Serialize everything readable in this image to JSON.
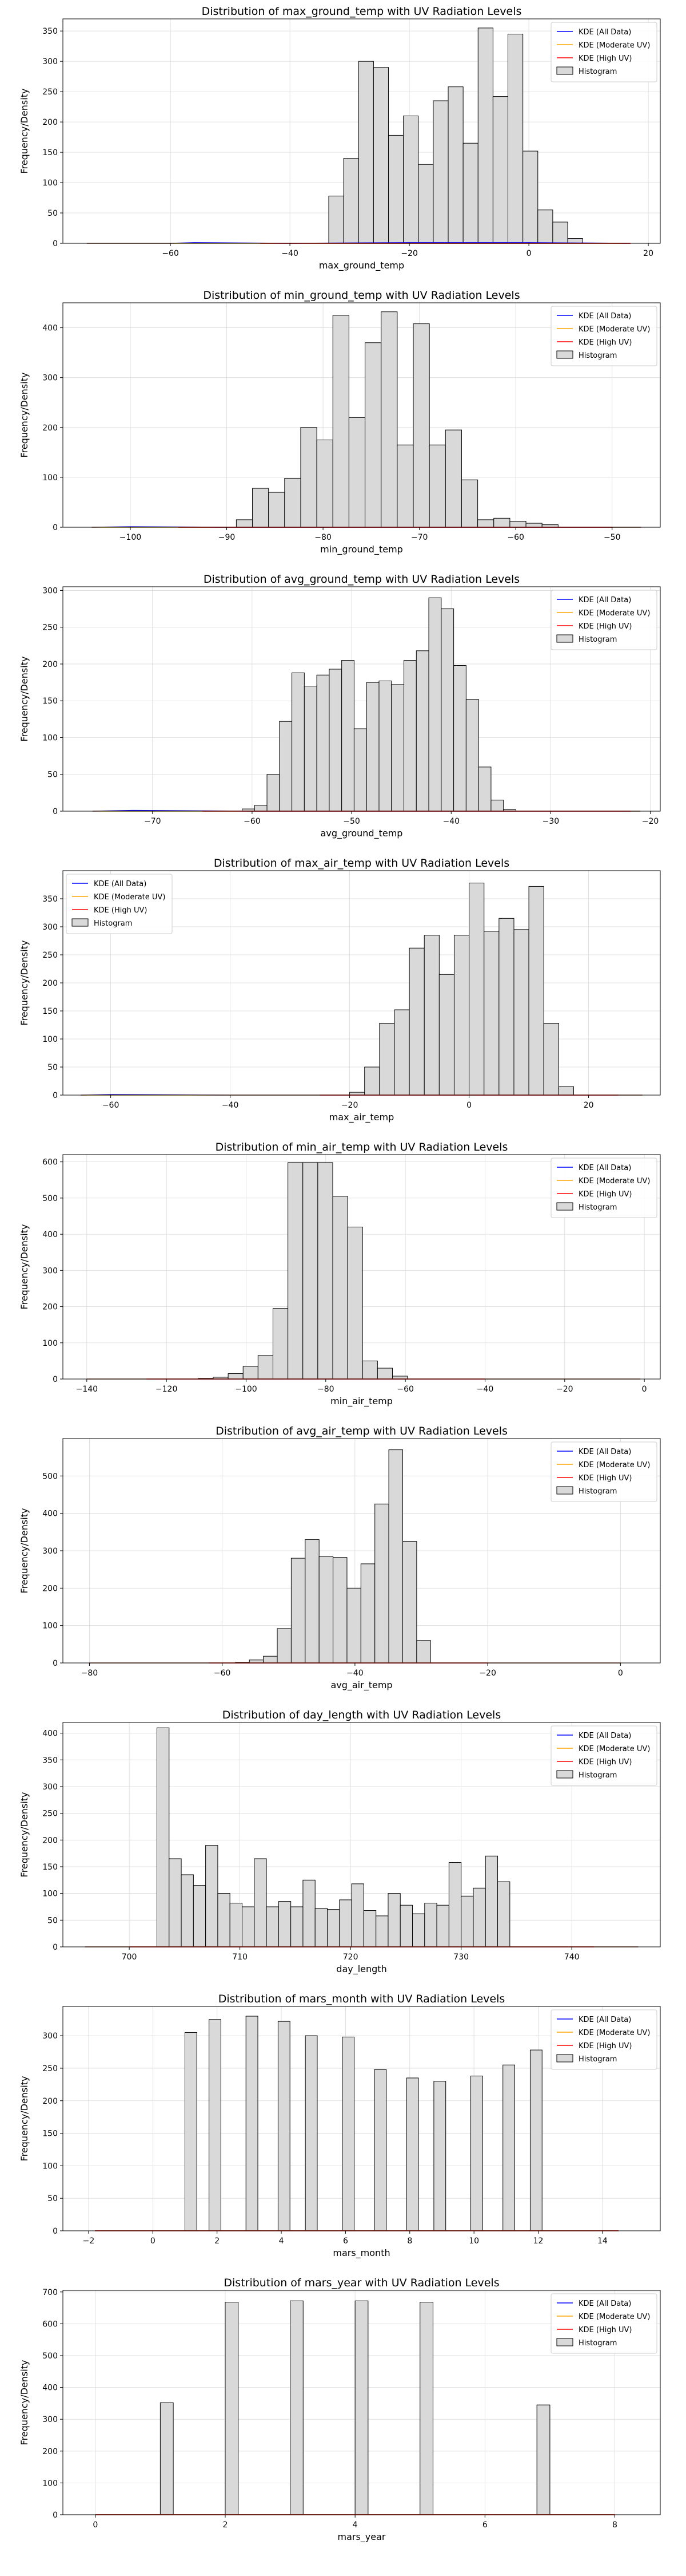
{
  "legend_labels": [
    "KDE (All Data)",
    "KDE (Moderate UV)",
    "KDE (High UV)",
    "Histogram"
  ],
  "colors": {
    "kde_all": "#0000ff",
    "kde_moderate": "#ffa500",
    "kde_high": "#ff0000",
    "hist_fill": "#d9d9d9",
    "hist_edge": "#000000",
    "grid": "#d9d9d9"
  },
  "chart_data": [
    {
      "type": "bar",
      "title": "Distribution of max_ground_temp with UV Radiation Levels",
      "xlabel": "max_ground_temp",
      "ylabel": "Frequency/Density",
      "xlim": [
        -78,
        22
      ],
      "ylim": [
        0,
        370
      ],
      "xticks": [
        -60,
        -40,
        -20,
        0,
        20
      ],
      "yticks": [
        0,
        50,
        100,
        150,
        200,
        250,
        300,
        350
      ],
      "legend_position": "upper right",
      "grid": true,
      "bin_start": -33.5,
      "bin_width": 2.5,
      "counts": [
        78,
        140,
        300,
        290,
        178,
        210,
        130,
        235,
        258,
        165,
        355,
        242,
        345,
        152,
        55,
        35,
        8
      ],
      "series": [
        {
          "name": "KDE (All Data)",
          "x": [
            -74,
            -60,
            -56,
            -40,
            -20,
            0,
            17
          ],
          "y": [
            0,
            0,
            1,
            0,
            1,
            1,
            0
          ]
        },
        {
          "name": "KDE (Moderate UV)",
          "x": [
            -74,
            -60,
            -40,
            -20,
            0,
            17
          ],
          "y": [
            0,
            0,
            0,
            0,
            0,
            0
          ]
        },
        {
          "name": "KDE (High UV)",
          "x": [
            -45,
            -30,
            -20,
            -10,
            0,
            10,
            17
          ],
          "y": [
            0,
            0,
            0,
            0,
            0,
            0,
            0
          ]
        }
      ]
    },
    {
      "type": "bar",
      "title": "Distribution of min_ground_temp with UV Radiation Levels",
      "xlabel": "min_ground_temp",
      "ylabel": "Frequency/Density",
      "xlim": [
        -107,
        -45
      ],
      "ylim": [
        0,
        450
      ],
      "xticks": [
        -100,
        -90,
        -80,
        -70,
        -60,
        -50
      ],
      "yticks": [
        0,
        100,
        200,
        300,
        400
      ],
      "legend_position": "upper right",
      "grid": true,
      "bin_start": -89,
      "bin_width": 1.67,
      "counts": [
        15,
        78,
        70,
        98,
        200,
        175,
        425,
        220,
        370,
        432,
        165,
        408,
        165,
        195,
        95,
        15,
        18,
        12,
        8,
        5
      ],
      "series": [
        {
          "name": "KDE (All Data)",
          "x": [
            -104,
            -100,
            -90,
            -80,
            -70,
            -60,
            -47
          ],
          "y": [
            0,
            1,
            0,
            0,
            0,
            0,
            0
          ]
        },
        {
          "name": "KDE (Moderate UV)",
          "x": [
            -104,
            -90,
            -80,
            -70,
            -60,
            -47
          ],
          "y": [
            0,
            0,
            0,
            0,
            0,
            0
          ]
        },
        {
          "name": "KDE (High UV)",
          "x": [
            -95,
            -90,
            -80,
            -70,
            -60,
            -50
          ],
          "y": [
            0,
            0,
            0,
            0,
            0,
            0
          ]
        }
      ]
    },
    {
      "type": "bar",
      "title": "Distribution of avg_ground_temp with UV Radiation Levels",
      "xlabel": "avg_ground_temp",
      "ylabel": "Frequency/Density",
      "xlim": [
        -79,
        -19
      ],
      "ylim": [
        0,
        305
      ],
      "xticks": [
        -70,
        -60,
        -50,
        -40,
        -30,
        -20
      ],
      "yticks": [
        0,
        50,
        100,
        150,
        200,
        250,
        300
      ],
      "legend_position": "upper right",
      "grid": true,
      "bin_start": -61,
      "bin_width": 1.25,
      "counts": [
        3,
        8,
        50,
        122,
        188,
        170,
        185,
        193,
        205,
        112,
        175,
        177,
        172,
        205,
        218,
        290,
        275,
        198,
        152,
        60,
        15,
        2
      ],
      "series": [
        {
          "name": "KDE (All Data)",
          "x": [
            -76,
            -72,
            -60,
            -50,
            -40,
            -30,
            -21
          ],
          "y": [
            0,
            1,
            0,
            0,
            0,
            0,
            0
          ]
        },
        {
          "name": "KDE (Moderate UV)",
          "x": [
            -76,
            -60,
            -50,
            -40,
            -30,
            -21
          ],
          "y": [
            0,
            0,
            0,
            0,
            0,
            0
          ]
        },
        {
          "name": "KDE (High UV)",
          "x": [
            -65,
            -60,
            -50,
            -40,
            -30,
            -22
          ],
          "y": [
            0,
            0,
            0,
            0,
            0,
            0
          ]
        }
      ]
    },
    {
      "type": "bar",
      "title": "Distribution of max_air_temp with UV Radiation Levels",
      "xlabel": "max_air_temp",
      "ylabel": "Frequency/Density",
      "xlim": [
        -68,
        32
      ],
      "ylim": [
        0,
        400
      ],
      "xticks": [
        -60,
        -40,
        -20,
        0,
        20
      ],
      "yticks": [
        0,
        50,
        100,
        150,
        200,
        250,
        300,
        350
      ],
      "legend_position": "upper left",
      "grid": true,
      "bin_start": -20,
      "bin_width": 2.5,
      "counts": [
        5,
        50,
        128,
        152,
        262,
        285,
        215,
        285,
        378,
        292,
        315,
        295,
        372,
        128,
        15
      ],
      "series": [
        {
          "name": "KDE (All Data)",
          "x": [
            -65,
            -60,
            -40,
            -20,
            0,
            20,
            29
          ],
          "y": [
            0,
            1,
            0,
            0,
            0,
            0,
            0
          ]
        },
        {
          "name": "KDE (Moderate UV)",
          "x": [
            -65,
            -40,
            -20,
            0,
            20,
            29
          ],
          "y": [
            0,
            0,
            0,
            0,
            0,
            0
          ]
        },
        {
          "name": "KDE (High UV)",
          "x": [
            -25,
            -20,
            -10,
            0,
            10,
            20,
            25
          ],
          "y": [
            0,
            0,
            0,
            0,
            0,
            0,
            0
          ]
        }
      ]
    },
    {
      "type": "bar",
      "title": "Distribution of min_air_temp with UV Radiation Levels",
      "xlabel": "min_air_temp",
      "ylabel": "Frequency/Density",
      "xlim": [
        -146,
        4
      ],
      "ylim": [
        0,
        620
      ],
      "xticks": [
        -140,
        -120,
        -100,
        -80,
        -60,
        -40,
        -20,
        0
      ],
      "yticks": [
        0,
        100,
        200,
        300,
        400,
        500,
        600
      ],
      "legend_position": "upper right",
      "grid": true,
      "bin_start": -112,
      "bin_width": 3.75,
      "counts": [
        2,
        5,
        15,
        35,
        65,
        195,
        598,
        598,
        598,
        505,
        420,
        50,
        30,
        8
      ],
      "series": [
        {
          "name": "KDE (All Data)",
          "x": [
            -140,
            -120,
            -100,
            -80,
            -60,
            -40,
            -20,
            -1
          ],
          "y": [
            0,
            0,
            0,
            0,
            0,
            0,
            0,
            0
          ]
        },
        {
          "name": "KDE (Moderate UV)",
          "x": [
            -140,
            -100,
            -80,
            -60,
            -20,
            -1
          ],
          "y": [
            0,
            0,
            0,
            0,
            0,
            0
          ]
        },
        {
          "name": "KDE (High UV)",
          "x": [
            -125,
            -100,
            -80,
            -60,
            -40
          ],
          "y": [
            0,
            0,
            0,
            0,
            0
          ]
        }
      ]
    },
    {
      "type": "bar",
      "title": "Distribution of avg_air_temp with UV Radiation Levels",
      "xlabel": "avg_air_temp",
      "ylabel": "Frequency/Density",
      "xlim": [
        -84,
        6
      ],
      "ylim": [
        0,
        600
      ],
      "xticks": [
        -80,
        -60,
        -40,
        -20,
        0
      ],
      "yticks": [
        0,
        100,
        200,
        300,
        400,
        500
      ],
      "legend_position": "upper right",
      "grid": true,
      "bin_start": -58,
      "bin_width": 2.1,
      "counts": [
        2,
        8,
        18,
        92,
        280,
        330,
        285,
        282,
        200,
        265,
        425,
        570,
        325,
        60
      ],
      "series": [
        {
          "name": "KDE (All Data)",
          "x": [
            -80,
            -60,
            -40,
            -20,
            0
          ],
          "y": [
            0,
            0,
            0,
            0,
            0
          ]
        },
        {
          "name": "KDE (Moderate UV)",
          "x": [
            -80,
            -60,
            -40,
            -20,
            0
          ],
          "y": [
            0,
            0,
            0,
            0,
            0
          ]
        },
        {
          "name": "KDE (High UV)",
          "x": [
            -62,
            -50,
            -40,
            -30,
            -20
          ],
          "y": [
            0,
            0,
            0,
            0,
            0
          ]
        }
      ]
    },
    {
      "type": "bar",
      "title": "Distribution of day_length with UV Radiation Levels",
      "xlabel": "day_length",
      "ylabel": "Frequency/Density",
      "xlim": [
        694,
        748
      ],
      "ylim": [
        0,
        420
      ],
      "xticks": [
        700,
        710,
        720,
        730,
        740
      ],
      "yticks": [
        0,
        50,
        100,
        150,
        200,
        250,
        300,
        350,
        400
      ],
      "legend_position": "upper right",
      "grid": true,
      "bin_start": 702.5,
      "bin_width": 1.1,
      "counts": [
        410,
        165,
        135,
        115,
        190,
        100,
        82,
        75,
        165,
        75,
        85,
        75,
        125,
        72,
        70,
        88,
        118,
        68,
        58,
        100,
        78,
        62,
        82,
        78,
        158,
        95,
        110,
        170,
        122
      ],
      "series": [
        {
          "name": "KDE (All Data)",
          "x": [
            696,
            710,
            720,
            730,
            746
          ],
          "y": [
            0,
            0,
            0,
            0,
            0
          ]
        },
        {
          "name": "KDE (Moderate UV)",
          "x": [
            696,
            710,
            720,
            730,
            746
          ],
          "y": [
            0,
            0,
            0,
            0,
            0
          ]
        },
        {
          "name": "KDE (High UV)",
          "x": [
            700,
            710,
            720,
            730,
            742
          ],
          "y": [
            0,
            0,
            0,
            0,
            0
          ]
        }
      ]
    },
    {
      "type": "bar",
      "title": "Distribution of mars_month with UV Radiation Levels",
      "xlabel": "mars_month",
      "ylabel": "Frequency/Density",
      "xlim": [
        -2.8,
        15.8
      ],
      "ylim": [
        0,
        345
      ],
      "xticks": [
        -2,
        0,
        2,
        4,
        6,
        8,
        10,
        12,
        14
      ],
      "yticks": [
        0,
        50,
        100,
        150,
        200,
        250,
        300
      ],
      "legend_position": "upper right",
      "grid": true,
      "bins": [
        {
          "x": 1,
          "w": 0.37,
          "v": 305
        },
        {
          "x": 1.75,
          "w": 0.37,
          "v": 325
        },
        {
          "x": 2.9,
          "w": 0.37,
          "v": 330
        },
        {
          "x": 3.9,
          "w": 0.37,
          "v": 322
        },
        {
          "x": 4.75,
          "w": 0.37,
          "v": 300
        },
        {
          "x": 5.9,
          "w": 0.37,
          "v": 298
        },
        {
          "x": 6.9,
          "w": 0.37,
          "v": 248
        },
        {
          "x": 7.9,
          "w": 0.37,
          "v": 235
        },
        {
          "x": 8.75,
          "w": 0.37,
          "v": 230
        },
        {
          "x": 9.9,
          "w": 0.37,
          "v": 238
        },
        {
          "x": 10.9,
          "w": 0.37,
          "v": 255
        },
        {
          "x": 11.75,
          "w": 0.37,
          "v": 278
        }
      ],
      "series": [
        {
          "name": "KDE (All Data)",
          "x": [
            -1.8,
            4,
            8,
            14.5
          ],
          "y": [
            0,
            0,
            0,
            0
          ]
        },
        {
          "name": "KDE (Moderate UV)",
          "x": [
            -1.8,
            4,
            8,
            14.5
          ],
          "y": [
            0,
            0,
            0,
            0
          ]
        },
        {
          "name": "KDE (High UV)",
          "x": [
            -1.8,
            4,
            8,
            14.5
          ],
          "y": [
            0,
            0,
            0,
            0
          ]
        }
      ]
    },
    {
      "type": "bar",
      "title": "Distribution of mars_year with UV Radiation Levels",
      "xlabel": "mars_year",
      "ylabel": "Frequency/Density",
      "xlim": [
        -0.5,
        8.7
      ],
      "ylim": [
        0,
        705
      ],
      "xticks": [
        0,
        2,
        4,
        6,
        8
      ],
      "yticks": [
        0,
        100,
        200,
        300,
        400,
        500,
        600,
        700
      ],
      "legend_position": "upper right",
      "grid": true,
      "bins": [
        {
          "x": 1,
          "w": 0.2,
          "v": 352
        },
        {
          "x": 2,
          "w": 0.2,
          "v": 668
        },
        {
          "x": 3,
          "w": 0.2,
          "v": 672
        },
        {
          "x": 4,
          "w": 0.2,
          "v": 672
        },
        {
          "x": 5,
          "w": 0.2,
          "v": 668
        },
        {
          "x": 6.8,
          "w": 0.2,
          "v": 345
        }
      ],
      "series": [
        {
          "name": "KDE (All Data)",
          "x": [
            0,
            4,
            8
          ],
          "y": [
            0,
            0,
            0
          ]
        },
        {
          "name": "KDE (Moderate UV)",
          "x": [
            0,
            4,
            8
          ],
          "y": [
            0,
            0,
            0
          ]
        },
        {
          "name": "KDE (High UV)",
          "x": [
            0,
            4,
            8
          ],
          "y": [
            0,
            0,
            0
          ]
        }
      ]
    }
  ]
}
